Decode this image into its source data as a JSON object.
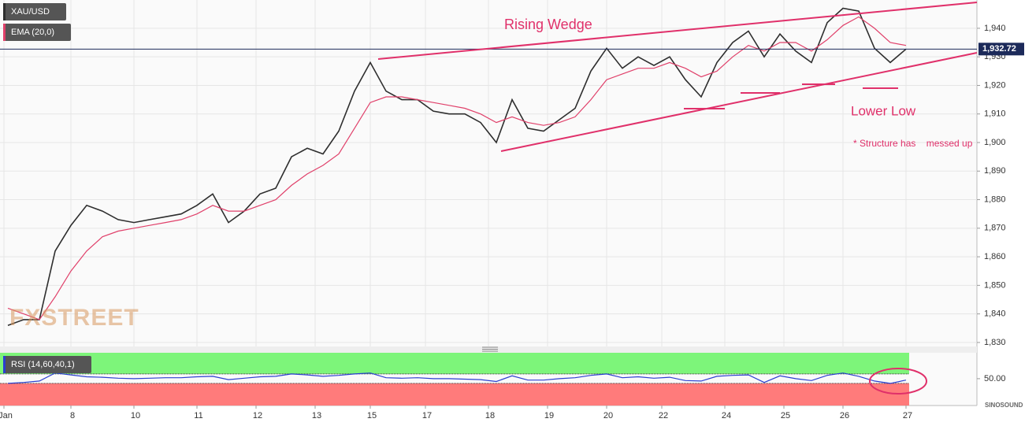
{
  "chart_data": [
    {
      "type": "line",
      "series": [
        {
          "name": "XAU/USD",
          "color": "#2e2e2e",
          "values": [
            1836,
            1838,
            1838,
            1862,
            1871,
            1878,
            1876,
            1873,
            1872,
            1873,
            1874,
            1875,
            1878,
            1882,
            1872,
            1876,
            1882,
            1884,
            1895,
            1898,
            1896,
            1904,
            1918,
            1928,
            1918,
            1915,
            1915,
            1911,
            1910,
            1910,
            1907,
            1900,
            1915,
            1905,
            1904,
            1908,
            1912,
            1925,
            1933,
            1926,
            1930,
            1927,
            1930,
            1922,
            1916,
            1928,
            1935,
            1939,
            1930,
            1938,
            1932,
            1928,
            1942,
            1947,
            1946,
            1933,
            1928,
            1932.72
          ]
        },
        {
          "name": "EMA (20,0)",
          "color": "#e0406a",
          "values": [
            1842,
            1840,
            1838,
            1846,
            1855,
            1862,
            1867,
            1869,
            1870,
            1871,
            1872,
            1873,
            1875,
            1878,
            1876,
            1876,
            1878,
            1880,
            1885,
            1889,
            1892,
            1896,
            1905,
            1914,
            1916,
            1916,
            1915,
            1914,
            1913,
            1912,
            1910,
            1907,
            1909,
            1907,
            1906,
            1907,
            1909,
            1915,
            1922,
            1924,
            1926,
            1926,
            1928,
            1926,
            1923,
            1925,
            1930,
            1934,
            1932,
            1935,
            1935,
            1932,
            1936,
            1941,
            1944,
            1940,
            1935,
            1934
          ]
        }
      ],
      "x": [
        2,
        6,
        10,
        14,
        18,
        22,
        26,
        30,
        34,
        38,
        42,
        46,
        50,
        54,
        58,
        62,
        66,
        70,
        74,
        78,
        82,
        86,
        90,
        94,
        98,
        102,
        106,
        110,
        114,
        118,
        122,
        126,
        130,
        134,
        138,
        142,
        146,
        150,
        154,
        158,
        162,
        166,
        170,
        174,
        178,
        182,
        186,
        190,
        194,
        198,
        202,
        206,
        210,
        214,
        218,
        222,
        226,
        230
      ],
      "xlim": [
        0,
        248
      ],
      "xticks": [
        {
          "value": 1,
          "label": "Jan"
        },
        {
          "value": 18,
          "label": "8"
        },
        {
          "value": 34,
          "label": "10"
        },
        {
          "value": 50,
          "label": "11"
        },
        {
          "value": 65,
          "label": "12"
        },
        {
          "value": 80,
          "label": "13"
        },
        {
          "value": 94,
          "label": "15"
        },
        {
          "value": 108,
          "label": "17"
        },
        {
          "value": 124,
          "label": "18"
        },
        {
          "value": 139,
          "label": "19"
        },
        {
          "value": 154,
          "label": "20"
        },
        {
          "value": 168,
          "label": "22"
        },
        {
          "value": 184,
          "label": "24"
        },
        {
          "value": 199,
          "label": "25"
        },
        {
          "value": 214,
          "label": "26"
        },
        {
          "value": 230,
          "label": "27"
        }
      ],
      "ylim": [
        1828.6,
        1949.9
      ],
      "yticks": [
        {
          "value": 1830,
          "label": "1,830"
        },
        {
          "value": 1840,
          "label": "1,840"
        },
        {
          "value": 1850,
          "label": "1,850"
        },
        {
          "value": 1860,
          "label": "1,860"
        },
        {
          "value": 1870,
          "label": "1,870"
        },
        {
          "value": 1880,
          "label": "1,880"
        },
        {
          "value": 1890,
          "label": "1,890"
        },
        {
          "value": 1900,
          "label": "1,900"
        },
        {
          "value": 1910,
          "label": "1,910"
        },
        {
          "value": 1920,
          "label": "1,920"
        },
        {
          "value": 1930,
          "label": "1,930"
        },
        {
          "value": 1940,
          "label": "1,940"
        }
      ],
      "grid": true,
      "last_price": {
        "value": 1932.72,
        "label": "1,932.72"
      },
      "annotations": [
        "Rising Wedge",
        "Lower Low",
        "* Structure has    messed up"
      ],
      "watermark": "FXSTREET",
      "logo": "SINOSOUND"
    },
    {
      "type": "line",
      "series": [
        {
          "name": "RSI (14,60,40,1)",
          "color": "#2a3fd0",
          "values": [
            40,
            42,
            45,
            62,
            58,
            54,
            53,
            51,
            50,
            51,
            52,
            52,
            54,
            55,
            48,
            51,
            54,
            55,
            60,
            58,
            55,
            57,
            60,
            62,
            52,
            51,
            52,
            50,
            50,
            49,
            48,
            44,
            56,
            47,
            47,
            50,
            52,
            57,
            60,
            52,
            54,
            51,
            53,
            46,
            45,
            55,
            57,
            58,
            42,
            56,
            50,
            46,
            57,
            62,
            55,
            45,
            40,
            47
          ]
        }
      ],
      "x": [
        2,
        6,
        10,
        14,
        18,
        22,
        26,
        30,
        34,
        38,
        42,
        46,
        50,
        54,
        58,
        62,
        66,
        70,
        74,
        78,
        82,
        86,
        90,
        94,
        98,
        102,
        106,
        110,
        114,
        118,
        122,
        126,
        130,
        134,
        138,
        142,
        146,
        150,
        154,
        158,
        162,
        166,
        170,
        174,
        178,
        182,
        186,
        190,
        194,
        198,
        202,
        206,
        210,
        214,
        218,
        222,
        226,
        230
      ],
      "xlim": [
        0,
        248
      ],
      "ylim": [
        -7,
        105
      ],
      "yticks": [
        {
          "value": 50,
          "label": "50.00"
        }
      ],
      "upper_level": 60,
      "lower_level": 40,
      "upper_color": "#7df57a",
      "lower_color": "#ff7b7b"
    }
  ]
}
